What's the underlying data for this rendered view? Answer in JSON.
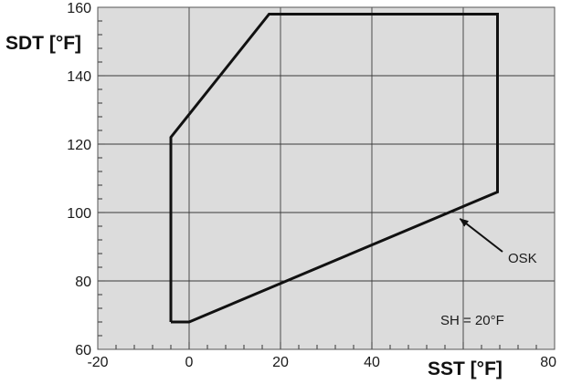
{
  "chart_data": {
    "type": "line",
    "xlabel": "SST [°F]",
    "ylabel": "SDT [°F]",
    "xlim": [
      -20,
      80
    ],
    "ylim": [
      60,
      160
    ],
    "x_ticks": [
      "-20",
      "0",
      "20",
      "40",
      "80"
    ],
    "y_ticks": [
      "60",
      "80",
      "100",
      "120",
      "140",
      "160"
    ],
    "grid": true,
    "background_color": "#dcdcdc",
    "line_color": "#111111",
    "series": [
      {
        "x": [
          -4,
          -4,
          17.5,
          67.5,
          67.5,
          0,
          -4
        ],
        "y": [
          68,
          122,
          158,
          158,
          106,
          68,
          68
        ]
      }
    ],
    "annotations": [
      {
        "text": "OSK",
        "arrow_to": [
          58.7,
          98.7
        ]
      },
      {
        "text": "SH = 20°F"
      }
    ]
  }
}
